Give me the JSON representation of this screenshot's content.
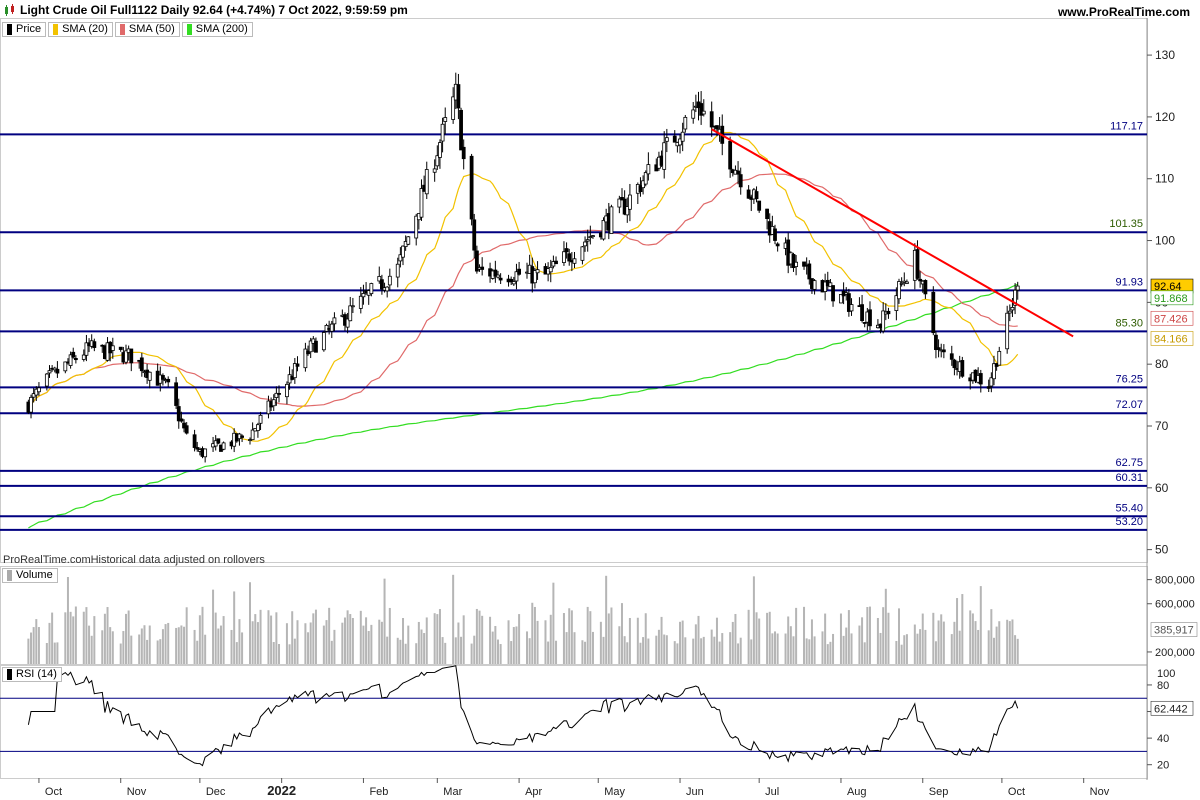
{
  "header": {
    "title": "Light Crude Oil Full1122 Daily 92.64 (+4.74%) 7 Oct 2022, 9:59:59 pm",
    "site": "www.ProRealTime.com",
    "credit": "ProRealTime.comHistorical data adjusted on rollovers"
  },
  "legend": {
    "price": "Price",
    "sma20": "SMA (20)",
    "sma50": "SMA (50)",
    "sma200": "SMA (200)",
    "volume": "Volume",
    "rsi": "RSI (14)"
  },
  "colors": {
    "sma20": "#f2c200",
    "sma50": "#e06a6a",
    "sma200": "#33dd22",
    "levels": "#000080",
    "trendline": "#ff0000"
  },
  "chart_data": [
    {
      "type": "line",
      "panel": "price",
      "ylim": [
        48,
        136
      ],
      "yticks": [
        50,
        60,
        70,
        80,
        90,
        100,
        110,
        120,
        130
      ],
      "xticks": [
        "Oct",
        "Nov",
        "Dec",
        "2022",
        "Feb",
        "Mar",
        "Apr",
        "May",
        "Jun",
        "Jul",
        "Aug",
        "Sep",
        "Oct",
        "Nov"
      ],
      "keypoints_close": [
        {
          "date": "2021-09-27",
          "v": 73.5
        },
        {
          "date": "2021-10-05",
          "v": 77.8
        },
        {
          "date": "2021-10-20",
          "v": 82.6
        },
        {
          "date": "2021-11-05",
          "v": 81.3
        },
        {
          "date": "2021-11-19",
          "v": 76.1
        },
        {
          "date": "2021-11-26",
          "v": 68.2
        },
        {
          "date": "2021-12-01",
          "v": 65.6
        },
        {
          "date": "2021-12-20",
          "v": 68.6
        },
        {
          "date": "2022-01-12",
          "v": 82.6
        },
        {
          "date": "2022-02-14",
          "v": 95.5
        },
        {
          "date": "2022-03-08",
          "v": 123.7
        },
        {
          "date": "2022-03-16",
          "v": 95.0
        },
        {
          "date": "2022-04-11",
          "v": 94.3
        },
        {
          "date": "2022-05-11",
          "v": 105.7
        },
        {
          "date": "2022-06-08",
          "v": 122.1
        },
        {
          "date": "2022-07-14",
          "v": 95.8
        },
        {
          "date": "2022-08-16",
          "v": 86.5
        },
        {
          "date": "2022-08-29",
          "v": 97.0
        },
        {
          "date": "2022-09-07",
          "v": 81.9
        },
        {
          "date": "2022-09-26",
          "v": 76.7
        },
        {
          "date": "2022-10-07",
          "v": 92.64
        }
      ],
      "levels": [
        117.17,
        101.35,
        91.93,
        85.3,
        76.25,
        72.07,
        62.75,
        60.31,
        55.4,
        53.2
      ],
      "trendline": [
        {
          "date": "2022-06-13",
          "v": 118.0
        },
        {
          "date": "2022-10-28",
          "v": 84.5
        }
      ],
      "last_values": {
        "price": "92.64",
        "sma200": "91.868",
        "sma50": "87.426",
        "sma20": "84.166"
      }
    },
    {
      "type": "bar",
      "panel": "volume",
      "ylim": [
        100000,
        880000
      ],
      "yticks": [
        "800,000",
        "600,000",
        "200,000"
      ],
      "last_value": "385,917"
    },
    {
      "type": "line",
      "panel": "rsi",
      "ylim": [
        10,
        95
      ],
      "yticks": [
        20,
        40,
        60,
        80,
        100
      ],
      "bands": [
        70,
        30
      ],
      "last_value": "62.442"
    }
  ]
}
